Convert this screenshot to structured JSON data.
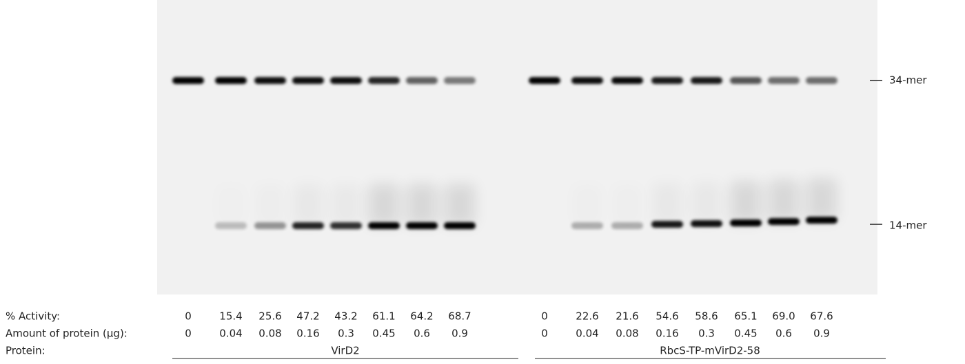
{
  "gel": {
    "markers": [
      "34-mer",
      "14-mer"
    ]
  },
  "table": {
    "rows": [
      {
        "label": "% Activity:",
        "values": [
          "0",
          "15.4",
          "25.6",
          "47.2",
          "43.2",
          "61.1",
          "64.2",
          "68.7",
          "0",
          "22.6",
          "21.6",
          "54.6",
          "58.6",
          "65.1",
          "69.0",
          "67.6"
        ]
      },
      {
        "label": "Amount of protein (µg):",
        "values": [
          "0",
          "0.04",
          "0.08",
          "0.16",
          "0.3",
          "0.45",
          "0.6",
          "0.9",
          "0",
          "0.04",
          "0.08",
          "0.16",
          "0.3",
          "0.45",
          "0.6",
          "0.9"
        ]
      },
      {
        "label": "Protein:",
        "groups": [
          "VirD2",
          "RbcS-TP-mVirD2-58"
        ]
      }
    ]
  }
}
